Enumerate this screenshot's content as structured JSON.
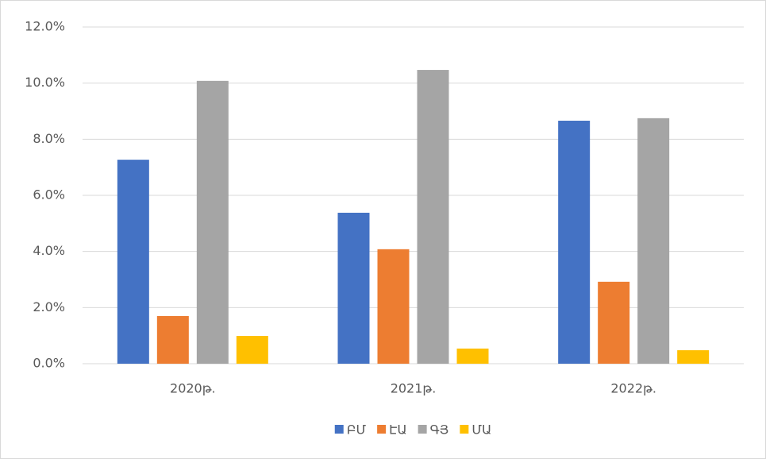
{
  "chart_data": {
    "type": "bar",
    "categories": [
      "2020թ.",
      "2021թ.",
      "2022թ."
    ],
    "series": [
      {
        "name": "ԲՄ",
        "color": "#4472c4",
        "values": [
          7.27,
          5.38,
          8.66
        ]
      },
      {
        "name": "ԷԱ",
        "color": "#ed7d31",
        "values": [
          1.7,
          4.08,
          2.92
        ]
      },
      {
        "name": "ԳՅ",
        "color": "#a5a5a5",
        "values": [
          10.08,
          10.47,
          8.75
        ]
      },
      {
        "name": "ՄԱ",
        "color": "#ffc000",
        "values": [
          0.99,
          0.54,
          0.48
        ]
      }
    ],
    "ylim": [
      0,
      12
    ],
    "yticks": [
      {
        "value": 0,
        "label": "0.0%"
      },
      {
        "value": 2,
        "label": "2.0%"
      },
      {
        "value": 4,
        "label": "4.0%"
      },
      {
        "value": 6,
        "label": "6.0%"
      },
      {
        "value": 8,
        "label": "8.0%"
      },
      {
        "value": 10,
        "label": "10.0%"
      },
      {
        "value": 12,
        "label": "12.0%"
      }
    ],
    "grid": true,
    "legend": "bottom"
  }
}
